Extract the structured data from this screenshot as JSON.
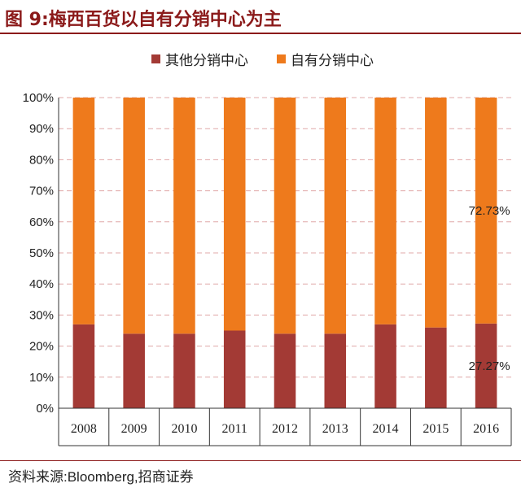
{
  "figure": {
    "title": "图 9:梅西百货以自有分销中心为主",
    "source": "资料来源:Bloomberg,招商证券"
  },
  "colors": {
    "title": "#8b1a1a",
    "series_other": "#a33a35",
    "series_own": "#ee7a1c",
    "grid": "#e0a8a8"
  },
  "chart_data": {
    "type": "bar",
    "stacked": true,
    "categories": [
      "2008",
      "2009",
      "2010",
      "2011",
      "2012",
      "2013",
      "2014",
      "2015",
      "2016"
    ],
    "series": [
      {
        "name": "其他分销中心",
        "values": [
          27,
          24,
          24,
          25,
          24,
          24,
          27,
          26,
          27.27
        ]
      },
      {
        "name": "自有分销中心",
        "values": [
          73,
          76,
          76,
          75,
          76,
          76,
          73,
          74,
          72.73
        ]
      }
    ],
    "ylim": [
      0,
      100
    ],
    "yticks": [
      "0%",
      "10%",
      "20%",
      "30%",
      "40%",
      "50%",
      "60%",
      "70%",
      "80%",
      "90%",
      "100%"
    ],
    "grid": true,
    "legend_position": "top",
    "annotations": [
      {
        "category": "2016",
        "series": "自有分销中心",
        "text": "72.73%"
      },
      {
        "category": "2016",
        "series": "其他分销中心",
        "text": "27.27%"
      }
    ]
  }
}
